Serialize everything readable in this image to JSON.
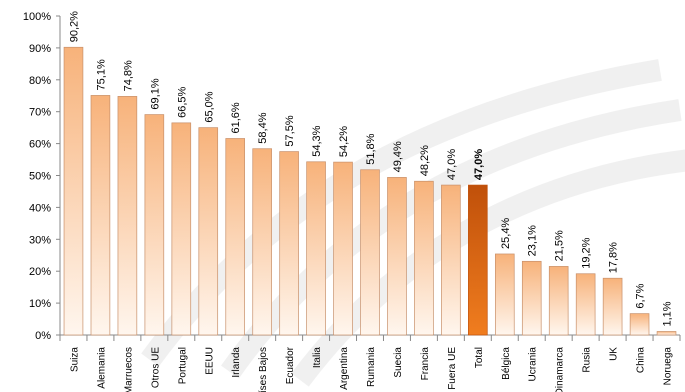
{
  "chart_data": {
    "type": "bar",
    "categories": [
      "Suiza",
      "Alemania",
      "Marruecos",
      "Otros UE",
      "Portugal",
      "EEUU",
      "Irlanda",
      "Países Bajos",
      "Ecuador",
      "Italia",
      "Argentina",
      "Rumania",
      "Suecia",
      "Francia",
      "Fuera UE",
      "Total",
      "Bélgica",
      "Ucrania",
      "Dinamarca",
      "Rusia",
      "UK",
      "China",
      "Noruega"
    ],
    "values": [
      90.2,
      75.1,
      74.8,
      69.1,
      66.5,
      65.0,
      61.6,
      58.4,
      57.5,
      54.3,
      54.2,
      51.8,
      49.4,
      48.2,
      47.0,
      47.0,
      25.4,
      23.1,
      21.5,
      19.2,
      17.8,
      6.7,
      1.1
    ],
    "value_labels": [
      "90,2%",
      "75,1%",
      "74,8%",
      "69,1%",
      "66,5%",
      "65,0%",
      "61,6%",
      "58,4%",
      "57,5%",
      "54,3%",
      "54,2%",
      "51,8%",
      "49,4%",
      "48,2%",
      "47,0%",
      "47,0%",
      "25,4%",
      "23,1%",
      "21,5%",
      "19,2%",
      "17,8%",
      "6,7%",
      "1,1%"
    ],
    "highlight_category": "Total",
    "y_ticks": [
      "0%",
      "10%",
      "20%",
      "30%",
      "40%",
      "50%",
      "60%",
      "70%",
      "80%",
      "90%",
      "100%"
    ],
    "ylim": [
      0,
      100
    ],
    "title": "",
    "xlabel": "",
    "ylabel": "",
    "grid": false,
    "legend": "none",
    "colors": {
      "bar_top": "#f7b27a",
      "bar_bottom": "#fff6ee",
      "bar_stroke": "#c8906a",
      "highlight_top": "#c0500a",
      "highlight_bottom": "#f07d1f",
      "axis": "#888888"
    }
  }
}
